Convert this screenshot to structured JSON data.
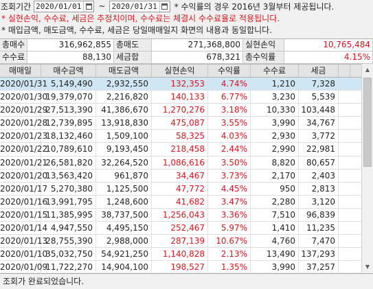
{
  "query": {
    "period_label": "조회기간",
    "start_date": "2020/01/01",
    "end_date": "2020/01/31",
    "range_separator": "~",
    "top_note": "* 수익률의 경우 2016년 3월부터 제공됩니다."
  },
  "notices": {
    "red": "* 실현손익, 수수료, 세금은 추정치이며, 수수료는 체결시 수수료율로 적용됩니다.",
    "dark": "* 매입금액, 매도금액, 수수료, 세금은 당일매매일지 화면의 내용과 동일합니다."
  },
  "summary": {
    "row1": [
      {
        "label": "총매수",
        "value": "316,962,855"
      },
      {
        "label": "총매도",
        "value": "271,368,800"
      },
      {
        "label": "실현손익",
        "value": "10,765,484",
        "red": true
      }
    ],
    "row2": [
      {
        "label": "수수료",
        "value": "88,130"
      },
      {
        "label": "세금합",
        "value": "678,321"
      },
      {
        "label": "총수익률",
        "value": "4.15%",
        "red": true
      }
    ]
  },
  "table": {
    "columns": [
      "매매일",
      "매수금액",
      "매도금액",
      "실현손익",
      "수익률",
      "수수료",
      "세금"
    ],
    "rows": [
      [
        "2020/01/31",
        "5,149,490",
        "2,932,550",
        "132,353",
        "4.74%",
        "1,210",
        "7,328"
      ],
      [
        "2020/01/30",
        "19,379,070",
        "2,216,820",
        "140,133",
        "6.77%",
        "3,230",
        "5,539"
      ],
      [
        "2020/01/29",
        "27,513,390",
        "41,386,670",
        "1,270,276",
        "3.18%",
        "10,330",
        "103,448"
      ],
      [
        "2020/01/28",
        "12,739,895",
        "13,918,830",
        "475,087",
        "3.55%",
        "3,990",
        "34,767"
      ],
      [
        "2020/01/23",
        "18,132,460",
        "1,509,100",
        "58,325",
        "4.03%",
        "2,930",
        "3,772"
      ],
      [
        "2020/01/22",
        "10,789,610",
        "9,193,450",
        "218,458",
        "2.44%",
        "2,990",
        "22,981"
      ],
      [
        "2020/01/21",
        "26,581,820",
        "32,264,520",
        "1,086,616",
        "3.50%",
        "8,820",
        "80,657"
      ],
      [
        "2020/01/20",
        "13,563,420",
        "961,870",
        "34,467",
        "3.73%",
        "2,170",
        "2,403"
      ],
      [
        "2020/01/17",
        "5,270,380",
        "1,125,500",
        "47,772",
        "4.45%",
        "950",
        "2,813"
      ],
      [
        "2020/01/16",
        "13,991,795",
        "1,248,600",
        "41,682",
        "3.47%",
        "2,280",
        "3,120"
      ],
      [
        "2020/01/15",
        "11,385,995",
        "38,737,500",
        "1,256,043",
        "3.36%",
        "7,510",
        "96,839"
      ],
      [
        "2020/01/14",
        "4,947,550",
        "4,495,150",
        "252,467",
        "5.97%",
        "1,410",
        "11,235"
      ],
      [
        "2020/01/13",
        "28,755,390",
        "2,988,000",
        "287,139",
        "10.67%",
        "4,760",
        "7,470"
      ],
      [
        "2020/01/10",
        "35,032,750",
        "54,921,250",
        "1,140,828",
        "2.13%",
        "13,490",
        "137,293"
      ],
      [
        "2020/01/09",
        "11,722,270",
        "14,904,100",
        "198,527",
        "1.35%",
        "3,990",
        "37,257"
      ]
    ],
    "selected_row": 0,
    "profit_color": "#d8141c",
    "selection_color": "#cfe7f5"
  },
  "status_text": "조회가 완료되었습니다."
}
